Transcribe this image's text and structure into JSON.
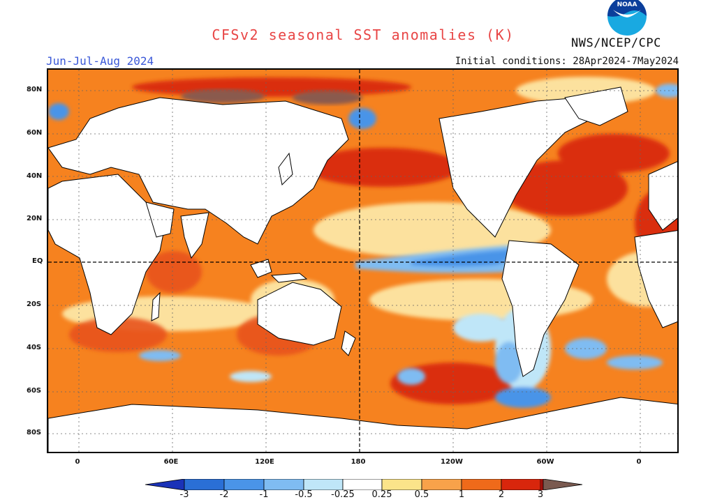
{
  "title": "CFSv2 seasonal SST anomalies (K)",
  "season": "Jun-Jul-Aug 2024",
  "initial_conditions": "Initial conditions: 28Apr2024-7May2024",
  "agency": "NWS/NCEP/CPC",
  "logo_text": "NOAA",
  "lat_labels": [
    "80N",
    "60N",
    "40N",
    "20N",
    "EQ",
    "20S",
    "40S",
    "60S",
    "80S"
  ],
  "lon_labels": [
    "0",
    "60E",
    "120E",
    "180",
    "120W",
    "60W",
    "0"
  ],
  "colorbar": {
    "ticks": [
      "-3",
      "-2",
      "-1",
      "-0.5",
      "-0.25",
      "0.25",
      "0.5",
      "1",
      "2",
      "3"
    ],
    "colors": [
      "#1a32b8",
      "#2a6fd6",
      "#4a94e8",
      "#7fbcf2",
      "#bfe6f8",
      "#ffffff",
      "#fbe48a",
      "#f8a24a",
      "#ef6a1a",
      "#d8260c",
      "#a00e0a",
      "#7a5a50"
    ]
  },
  "colors": {
    "title": "#e84545",
    "season": "#3a58d8",
    "ocean_base": "#f6821f"
  }
}
